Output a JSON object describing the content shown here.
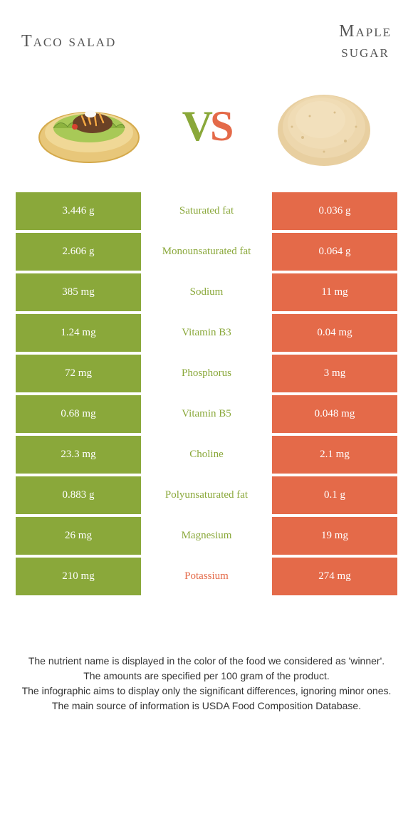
{
  "colors": {
    "green": "#8aa83a",
    "orange": "#e46a49",
    "header_text": "#555555",
    "footer_text": "#333333",
    "white": "#ffffff"
  },
  "header": {
    "left_title": "Taco salad",
    "right_title_line1": "Maple",
    "right_title_line2": "sugar",
    "vs_v": "V",
    "vs_s": "S"
  },
  "rows": [
    {
      "left": "3.446 g",
      "label": "Saturated fat",
      "right": "0.036 g",
      "winner": "left"
    },
    {
      "left": "2.606 g",
      "label": "Monounsaturated fat",
      "right": "0.064 g",
      "winner": "left"
    },
    {
      "left": "385 mg",
      "label": "Sodium",
      "right": "11 mg",
      "winner": "left"
    },
    {
      "left": "1.24 mg",
      "label": "Vitamin B3",
      "right": "0.04 mg",
      "winner": "left"
    },
    {
      "left": "72 mg",
      "label": "Phosphorus",
      "right": "3 mg",
      "winner": "left"
    },
    {
      "left": "0.68 mg",
      "label": "Vitamin B5",
      "right": "0.048 mg",
      "winner": "left"
    },
    {
      "left": "23.3 mg",
      "label": "Choline",
      "right": "2.1 mg",
      "winner": "left"
    },
    {
      "left": "0.883 g",
      "label": "Polyunsaturated fat",
      "right": "0.1 g",
      "winner": "left"
    },
    {
      "left": "26 mg",
      "label": "Magnesium",
      "right": "19 mg",
      "winner": "left"
    },
    {
      "left": "210 mg",
      "label": "Potassium",
      "right": "274 mg",
      "winner": "right"
    }
  ],
  "footer": {
    "line1": "The nutrient name is displayed in the color of the food we considered as 'winner'.",
    "line2": "The amounts are specified per 100 gram of the product.",
    "line3": "The infographic aims to display only the significant differences, ignoring minor ones.",
    "line4": "The main source of information is USDA Food Composition Database."
  }
}
